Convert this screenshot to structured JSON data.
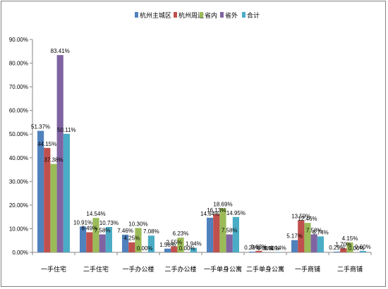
{
  "chart_data": {
    "type": "bar",
    "categories": [
      "一手住宅",
      "二手住宅",
      "一手办公楼",
      "二手办公楼",
      "一手单身公寓",
      "二手单身公寓",
      "一手商铺",
      "二手商铺"
    ],
    "series": [
      {
        "name": "杭州主城区",
        "color": "#4F81BD",
        "values": [
          51.37,
          10.91,
          7.46,
          1.56,
          14.64,
          0.29,
          5.17,
          0.29
        ],
        "labels": [
          "51.37%",
          "10.91%",
          "7.46%",
          "1.56%",
          "14.64%",
          "0.29%",
          "5.17%",
          "0.29%"
        ]
      },
      {
        "name": "杭州周边",
        "color": "#C0504D",
        "values": [
          44.15,
          8.49,
          4.25,
          2.55,
          16.13,
          0.63,
          13.59,
          1.7
        ],
        "labels": [
          "44.15%",
          "8.49%",
          "4.25%",
          "2.55%",
          "16.13%",
          "0.63%",
          "13.59%",
          "1.70%"
        ]
      },
      {
        "name": "省内",
        "color": "#9BBB59",
        "values": [
          37.38,
          14.54,
          10.3,
          6.23,
          18.69,
          0.0,
          12.46,
          4.15
        ],
        "labels": [
          "37.38%",
          "14.54%",
          "10.30%",
          "6.23%",
          "18.69%",
          "0.00%",
          "12.46%",
          "4.15%"
        ]
      },
      {
        "name": "省外",
        "color": "#8064A2",
        "values": [
          83.41,
          7.58,
          0.0,
          0.0,
          7.58,
          0.0,
          7.58,
          0.0
        ],
        "labels": [
          "83.41%",
          "7.58%",
          "0.00%",
          "0.00%",
          "7.58%",
          "0.00%",
          "7.58%",
          "0.00%"
        ]
      },
      {
        "name": "合计",
        "color": "#4BACC6",
        "values": [
          50.11,
          10.73,
          7.08,
          1.94,
          14.95,
          0.14,
          6.74,
          0.6
        ],
        "labels": [
          "50.11%",
          "10.73%",
          "7.08%",
          "1.94%",
          "14.95%",
          "0.14%",
          "6.74%",
          "0.60%"
        ]
      }
    ],
    "ylim": [
      0,
      90
    ],
    "yticks": [
      "0.00%",
      "10.00%",
      "20.00%",
      "30.00%",
      "40.00%",
      "50.00%",
      "60.00%",
      "70.00%",
      "80.00%",
      "90.00%"
    ],
    "ytick_values": [
      0,
      10,
      20,
      30,
      40,
      50,
      60,
      70,
      80,
      90
    ],
    "grid": false,
    "legend_position": "top-right",
    "title": "",
    "xlabel": "",
    "ylabel": ""
  }
}
